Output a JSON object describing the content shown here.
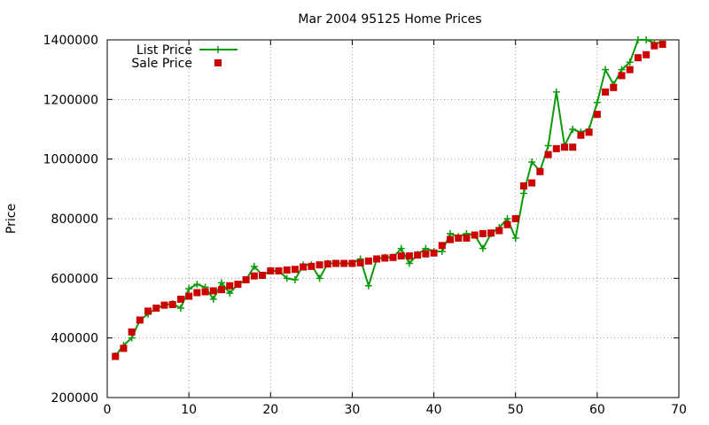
{
  "chart_data": {
    "type": "line",
    "title": "Mar 2004 95125 Home Prices",
    "xlabel": "",
    "ylabel": "Price",
    "xlim": [
      0,
      70
    ],
    "ylim": [
      200000,
      1400000
    ],
    "x_ticks": [
      0,
      10,
      20,
      30,
      40,
      50,
      60,
      70
    ],
    "y_ticks": [
      200000,
      400000,
      600000,
      800000,
      1000000,
      1200000,
      1400000
    ],
    "grid": true,
    "legend_position": "top-left",
    "series": [
      {
        "name": "List Price",
        "style": "line+plus",
        "color": "#0a9a0a",
        "x": [
          1,
          2,
          3,
          4,
          5,
          6,
          7,
          8,
          9,
          10,
          11,
          12,
          13,
          14,
          15,
          16,
          17,
          18,
          19,
          20,
          21,
          22,
          23,
          24,
          25,
          26,
          27,
          28,
          29,
          30,
          31,
          32,
          33,
          34,
          35,
          36,
          37,
          38,
          39,
          40,
          41,
          42,
          43,
          44,
          45,
          46,
          47,
          48,
          49,
          50,
          51,
          52,
          53,
          54,
          55,
          56,
          57,
          58,
          59,
          60,
          61,
          62,
          63,
          64,
          65,
          66,
          67,
          68
        ],
        "values": [
          340000,
          375000,
          400000,
          460000,
          480000,
          500000,
          510000,
          515000,
          500000,
          565000,
          580000,
          570000,
          530000,
          585000,
          550000,
          580000,
          595000,
          640000,
          610000,
          625000,
          625000,
          600000,
          595000,
          645000,
          645000,
          600000,
          650000,
          650000,
          650000,
          650000,
          665000,
          575000,
          665000,
          670000,
          670000,
          700000,
          650000,
          680000,
          700000,
          690000,
          690000,
          750000,
          740000,
          750000,
          745000,
          700000,
          750000,
          770000,
          800000,
          735000,
          885000,
          990000,
          960000,
          1045000,
          1225000,
          1045000,
          1100000,
          1090000,
          1100000,
          1190000,
          1300000,
          1250000,
          1300000,
          1325000,
          1400000,
          1400000,
          1390000,
          1390000
        ]
      },
      {
        "name": "Sale Price",
        "style": "square-markers",
        "color": "#cc0000",
        "x": [
          1,
          2,
          3,
          4,
          5,
          6,
          7,
          8,
          9,
          10,
          11,
          12,
          13,
          14,
          15,
          16,
          17,
          18,
          19,
          20,
          21,
          22,
          23,
          24,
          25,
          26,
          27,
          28,
          29,
          30,
          31,
          32,
          33,
          34,
          35,
          36,
          37,
          38,
          39,
          40,
          41,
          42,
          43,
          44,
          45,
          46,
          47,
          48,
          49,
          50,
          51,
          52,
          53,
          54,
          55,
          56,
          57,
          58,
          59,
          60,
          61,
          62,
          63,
          64,
          65,
          66,
          67,
          68
        ],
        "values": [
          338000,
          365000,
          420000,
          460000,
          490000,
          500000,
          510000,
          512000,
          530000,
          540000,
          552000,
          555000,
          558000,
          562000,
          575000,
          580000,
          595000,
          608000,
          610000,
          625000,
          625000,
          628000,
          630000,
          638000,
          640000,
          645000,
          648000,
          650000,
          650000,
          650000,
          652000,
          658000,
          665000,
          668000,
          670000,
          675000,
          675000,
          678000,
          682000,
          685000,
          710000,
          730000,
          735000,
          735000,
          745000,
          750000,
          752000,
          760000,
          780000,
          800000,
          910000,
          920000,
          958000,
          1015000,
          1035000,
          1040000,
          1040000,
          1080000,
          1090000,
          1150000,
          1225000,
          1240000,
          1280000,
          1300000,
          1340000,
          1350000,
          1380000,
          1385000
        ]
      }
    ]
  }
}
